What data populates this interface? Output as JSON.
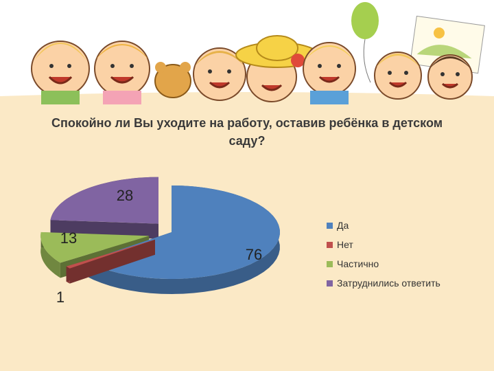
{
  "chart_data": {
    "type": "pie",
    "title": "Спокойно ли Вы уходите на работу, оставив ребёнка в детском саду?",
    "categories": [
      "Да",
      "Нет",
      "Частично",
      "Затруднились ответить"
    ],
    "values": [
      76,
      1,
      13,
      28
    ],
    "colors": [
      "#4f81bd",
      "#c0504d",
      "#9bbb59",
      "#8064a2"
    ],
    "data_labels": [
      "76",
      "1",
      "13",
      "28"
    ],
    "legend_position": "right",
    "exploded": true,
    "style": "3d"
  },
  "legend": {
    "items": [
      {
        "label": "Да",
        "color": "#4f81bd"
      },
      {
        "label": "Нет",
        "color": "#c0504d"
      },
      {
        "label": "Частично",
        "color": "#9bbb59"
      },
      {
        "label": "Затруднились ответить",
        "color": "#8064a2"
      }
    ]
  },
  "banner": {
    "icon": "cartoon-children-illustration"
  }
}
